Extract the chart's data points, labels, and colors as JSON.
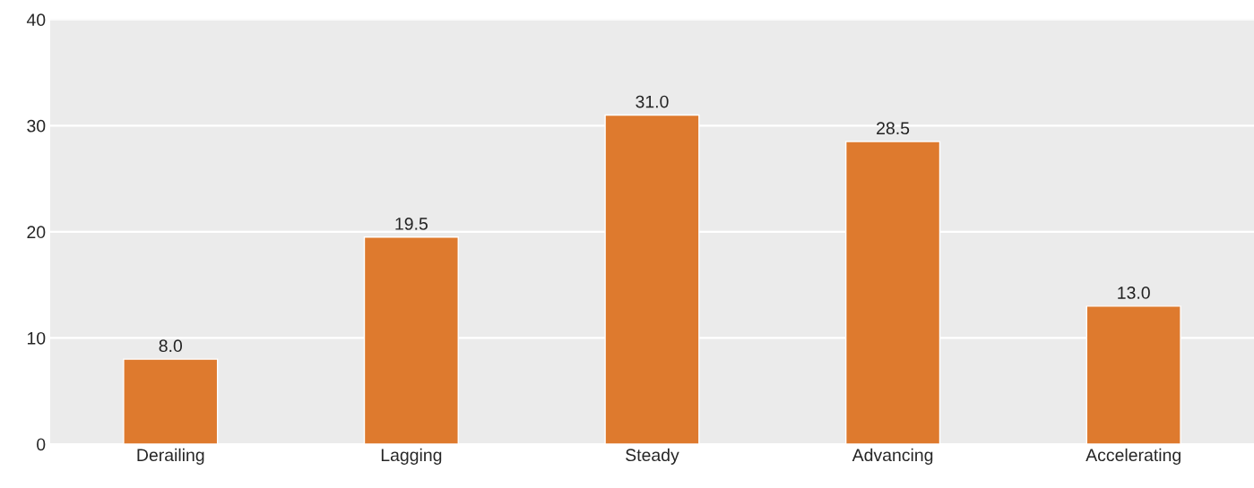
{
  "chart_data": {
    "type": "bar",
    "categories": [
      "Derailing",
      "Lagging",
      "Steady",
      "Advancing",
      "Accelerating"
    ],
    "values": [
      8.0,
      19.5,
      31.0,
      28.5,
      13.0
    ],
    "value_labels": [
      "8.0",
      "19.5",
      "31.0",
      "28.5",
      "13.0"
    ],
    "color": "#de7a2e",
    "ylim": [
      0,
      40
    ],
    "yticks": [
      0,
      10,
      20,
      30,
      40
    ],
    "grid": "y"
  }
}
